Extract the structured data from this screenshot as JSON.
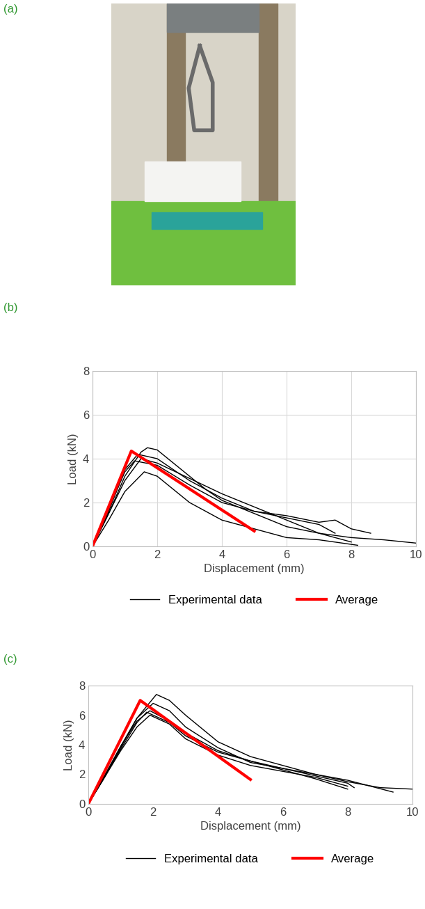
{
  "figure_labels": [
    "(a)",
    "(b)",
    "(c)"
  ],
  "chart_data": [
    {
      "type": "line",
      "panel_label": "(b)",
      "x_label": "Displacement (mm)",
      "y_label": "Load (kN)",
      "xlim": [
        0,
        10
      ],
      "xticks": [
        0,
        2,
        4,
        6,
        8,
        10
      ],
      "ylim": [
        0,
        8
      ],
      "yticks": [
        0,
        2,
        4,
        6,
        8
      ],
      "grid": true,
      "legend": "bottom",
      "series": [
        {
          "name": "Experimental data",
          "color": "#000000",
          "curves": [
            {
              "x": [
                0,
                0.5,
                1,
                1.5,
                1.7,
                2,
                2.5,
                3,
                3.5,
                4,
                5,
                6,
                7,
                8,
                9,
                10
              ],
              "values": [
                0,
                1.5,
                3.2,
                4.3,
                4.5,
                4.4,
                3.8,
                3.2,
                2.6,
                2.1,
                1.5,
                0.9,
                0.6,
                0.4,
                0.3,
                0.15
              ]
            },
            {
              "x": [
                0,
                0.5,
                1,
                1.4,
                2,
                2.5,
                3,
                4,
                5,
                6,
                7,
                7.5,
                8,
                8.6
              ],
              "values": [
                0,
                1.6,
                3.5,
                4.2,
                4.0,
                3.5,
                3.0,
                2.2,
                1.6,
                1.4,
                1.1,
                1.2,
                0.8,
                0.6
              ]
            },
            {
              "x": [
                0,
                0.5,
                1,
                1.3,
                2,
                3,
                4,
                5,
                6,
                7,
                7.5
              ],
              "values": [
                0,
                1.7,
                3.4,
                3.9,
                3.7,
                2.8,
                2.0,
                1.6,
                1.3,
                1.0,
                0.6
              ]
            },
            {
              "x": [
                0,
                0.5,
                1,
                1.6,
                2,
                2.5,
                3,
                4,
                5,
                6,
                7,
                8.2
              ],
              "values": [
                0,
                1.2,
                2.5,
                3.4,
                3.2,
                2.6,
                2.0,
                1.2,
                0.8,
                0.4,
                0.3,
                0.05
              ]
            },
            {
              "x": [
                0,
                0.5,
                1,
                1.5,
                2,
                3,
                4,
                5,
                6,
                7,
                8
              ],
              "values": [
                0,
                1.5,
                3.0,
                4.0,
                3.8,
                3.1,
                2.4,
                1.8,
                1.2,
                0.6,
                0.2
              ]
            }
          ]
        },
        {
          "name": "Average",
          "color": "#ff0000",
          "x": [
            0,
            1.2,
            5
          ],
          "values": [
            0,
            4.35,
            0.7
          ]
        }
      ]
    },
    {
      "type": "line",
      "panel_label": "(c)",
      "x_label": "Displacement (mm)",
      "y_label": "Load (kN)",
      "xlim": [
        0,
        10
      ],
      "xticks": [
        0,
        2,
        4,
        6,
        8,
        10
      ],
      "ylim": [
        0,
        8
      ],
      "yticks": [
        0,
        2,
        4,
        6,
        8
      ],
      "grid": false,
      "legend": "bottom",
      "series": [
        {
          "name": "Experimental data",
          "color": "#000000",
          "curves": [
            {
              "x": [
                0,
                0.5,
                1,
                1.5,
                2.1,
                2.5,
                3,
                4,
                5,
                6,
                7,
                8,
                9,
                10
              ],
              "values": [
                0,
                1.8,
                3.8,
                5.8,
                7.4,
                7.0,
                6.0,
                4.2,
                3.2,
                2.6,
                2.0,
                1.5,
                1.1,
                1.0
              ]
            },
            {
              "x": [
                0,
                0.5,
                1,
                1.5,
                1.9,
                2.5,
                3,
                4,
                5,
                6,
                7,
                8,
                8.2
              ],
              "values": [
                0,
                1.9,
                3.9,
                5.6,
                6.3,
                5.6,
                4.8,
                3.6,
                2.9,
                2.4,
                1.9,
                1.4,
                1.1
              ]
            },
            {
              "x": [
                0,
                0.5,
                1,
                1.5,
                1.9,
                2.5,
                3,
                4,
                5,
                6,
                7,
                8
              ],
              "values": [
                0,
                1.8,
                3.6,
                5.2,
                6.0,
                5.4,
                4.4,
                3.3,
                2.6,
                2.2,
                1.8,
                1.2
              ]
            },
            {
              "x": [
                0,
                0.5,
                1,
                1.5,
                2,
                2.5,
                3,
                4,
                5,
                6,
                7,
                8,
                9.4
              ],
              "values": [
                0,
                1.9,
                3.9,
                5.8,
                6.8,
                6.3,
                5.2,
                3.8,
                2.8,
                2.4,
                2.0,
                1.6,
                0.8
              ]
            },
            {
              "x": [
                0,
                0.5,
                1,
                1.5,
                1.8,
                2.5,
                3,
                4,
                5,
                6,
                7,
                8
              ],
              "values": [
                0,
                1.8,
                3.7,
                5.5,
                6.2,
                5.5,
                4.6,
                3.5,
                2.9,
                2.3,
                1.7,
                1.0
              ]
            }
          ]
        },
        {
          "name": "Average",
          "color": "#ff0000",
          "x": [
            0,
            1.6,
            5
          ],
          "values": [
            0,
            7.0,
            1.65
          ]
        }
      ]
    }
  ]
}
